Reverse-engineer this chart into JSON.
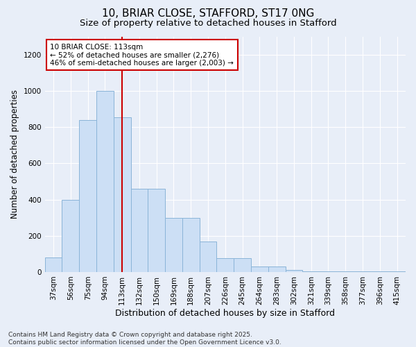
{
  "title1": "10, BRIAR CLOSE, STAFFORD, ST17 0NG",
  "title2": "Size of property relative to detached houses in Stafford",
  "xlabel": "Distribution of detached houses by size in Stafford",
  "ylabel": "Number of detached properties",
  "categories": [
    "37sqm",
    "56sqm",
    "75sqm",
    "94sqm",
    "113sqm",
    "132sqm",
    "150sqm",
    "169sqm",
    "188sqm",
    "207sqm",
    "226sqm",
    "245sqm",
    "264sqm",
    "283sqm",
    "302sqm",
    "321sqm",
    "339sqm",
    "358sqm",
    "377sqm",
    "396sqm",
    "415sqm"
  ],
  "values": [
    80,
    400,
    840,
    1000,
    855,
    460,
    460,
    300,
    300,
    170,
    75,
    75,
    30,
    30,
    10,
    5,
    5,
    2,
    2,
    5,
    2
  ],
  "bar_color": "#ccdff5",
  "bar_edge_color": "#8ab4d8",
  "highlight_index": 4,
  "vline_color": "#cc0000",
  "annotation_text": "10 BRIAR CLOSE: 113sqm\n← 52% of detached houses are smaller (2,276)\n46% of semi-detached houses are larger (2,003) →",
  "annotation_box_color": "#ffffff",
  "annotation_box_edge": "#cc0000",
  "ylim": [
    0,
    1300
  ],
  "yticks": [
    0,
    200,
    400,
    600,
    800,
    1000,
    1200
  ],
  "background_color": "#e8eef8",
  "footer1": "Contains HM Land Registry data © Crown copyright and database right 2025.",
  "footer2": "Contains public sector information licensed under the Open Government Licence v3.0.",
  "title_fontsize": 11,
  "subtitle_fontsize": 9.5,
  "axis_label_fontsize": 8.5,
  "tick_fontsize": 7.5,
  "footer_fontsize": 6.5
}
